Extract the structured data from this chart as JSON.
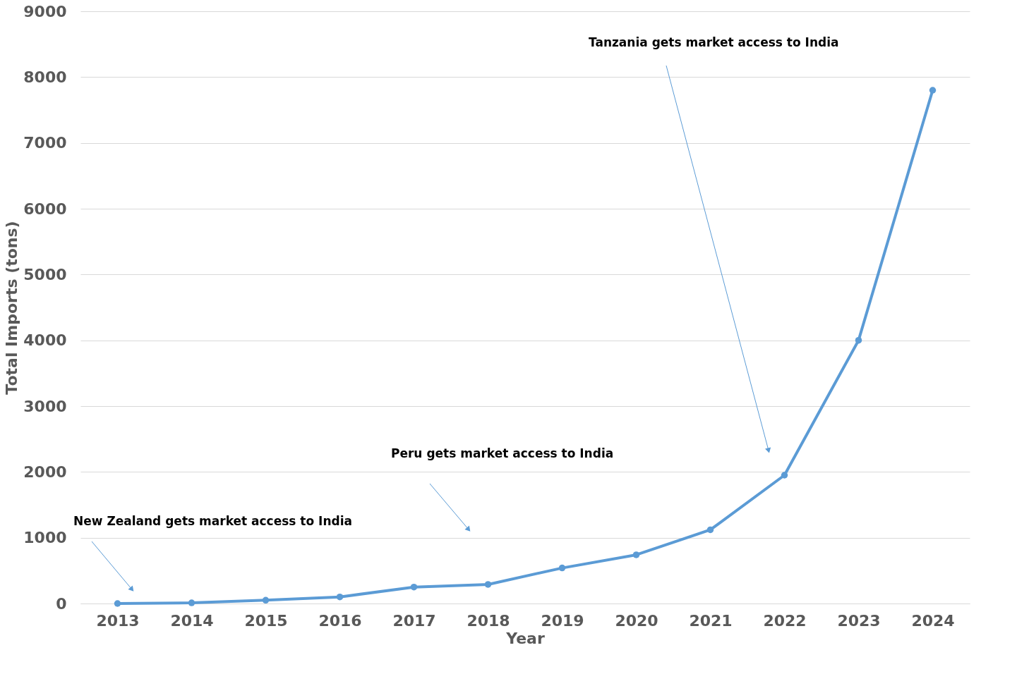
{
  "chart_data": {
    "type": "line",
    "xlabel": "Year",
    "ylabel": "Total Imports (tons)",
    "categories": [
      "2013",
      "2014",
      "2015",
      "2016",
      "2017",
      "2018",
      "2019",
      "2020",
      "2021",
      "2022",
      "2023",
      "2024"
    ],
    "series": [
      {
        "color": "#5b9bd5",
        "values": [
          0,
          10,
          50,
          100,
          250,
          290,
          540,
          740,
          1120,
          1950,
          4000,
          7800
        ]
      }
    ],
    "ylim": [
      0,
      9000
    ],
    "yticks": [
      0,
      1000,
      2000,
      3000,
      4000,
      5000,
      6000,
      7000,
      8000,
      9000
    ],
    "grid": "y",
    "marker": "circle",
    "line_style": "solid",
    "annotations": [
      "New Zealand gets market access to India",
      "Peru gets market access to India",
      "Tanzania  gets market access to India"
    ]
  }
}
